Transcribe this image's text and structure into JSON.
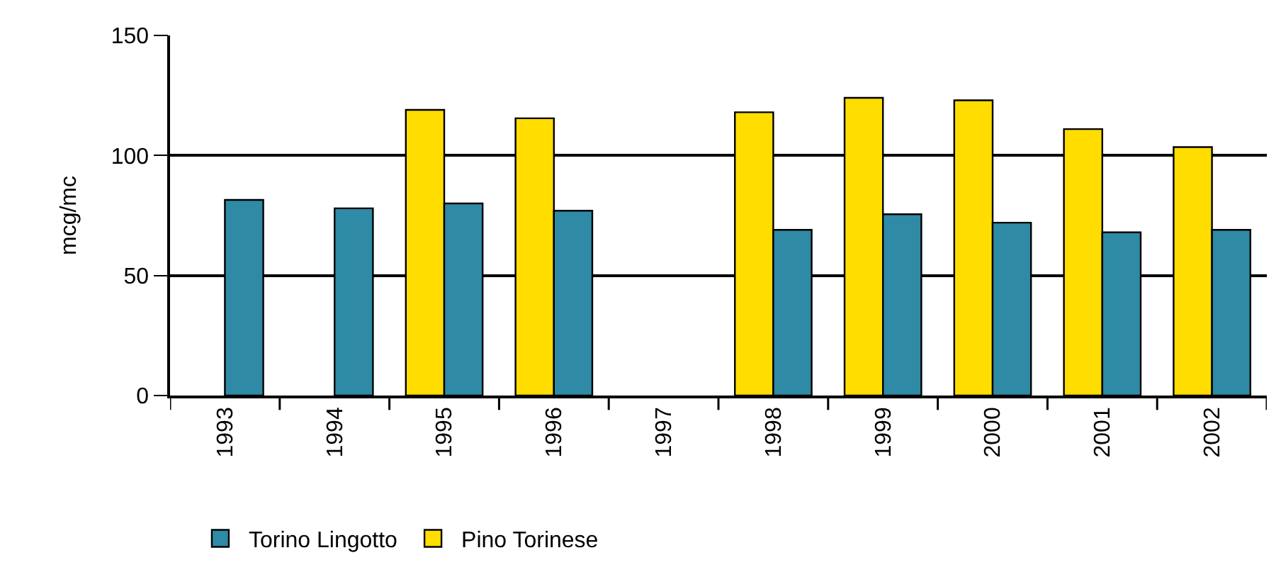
{
  "chart_data": {
    "type": "bar",
    "ylabel": "mcg/mc",
    "categories": [
      "1993",
      "1994",
      "1995",
      "1996",
      "1997",
      "1998",
      "1999",
      "2000",
      "2001",
      "2002"
    ],
    "series": [
      {
        "name": "Pino Torinese",
        "color": "#ffdd00",
        "values": [
          null,
          null,
          119,
          115.5,
          null,
          118,
          124,
          123,
          111,
          103.5
        ]
      },
      {
        "name": "Torino Lingotto",
        "color": "#2e8aa5",
        "values": [
          81.5,
          78,
          80,
          77,
          null,
          69,
          75.5,
          72,
          68,
          69
        ]
      }
    ],
    "ylim": [
      0,
      150
    ],
    "yticks": [
      0,
      50,
      100,
      150
    ],
    "grid": "y",
    "legend": "bottom"
  }
}
